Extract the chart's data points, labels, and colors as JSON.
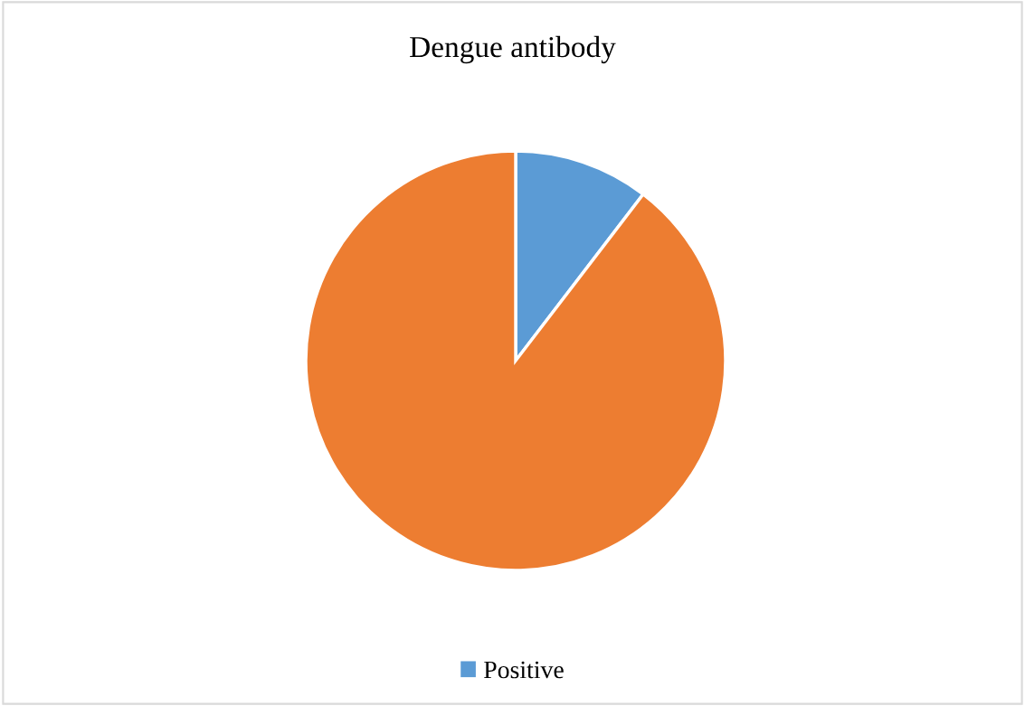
{
  "chart_data": {
    "type": "pie",
    "title": "Dengue antibody",
    "categories": [
      "Positive",
      null
    ],
    "values": [
      10.4,
      89.6
    ],
    "colors": [
      "#5b9bd5",
      "#ed7d31"
    ],
    "legend": "bottom"
  }
}
